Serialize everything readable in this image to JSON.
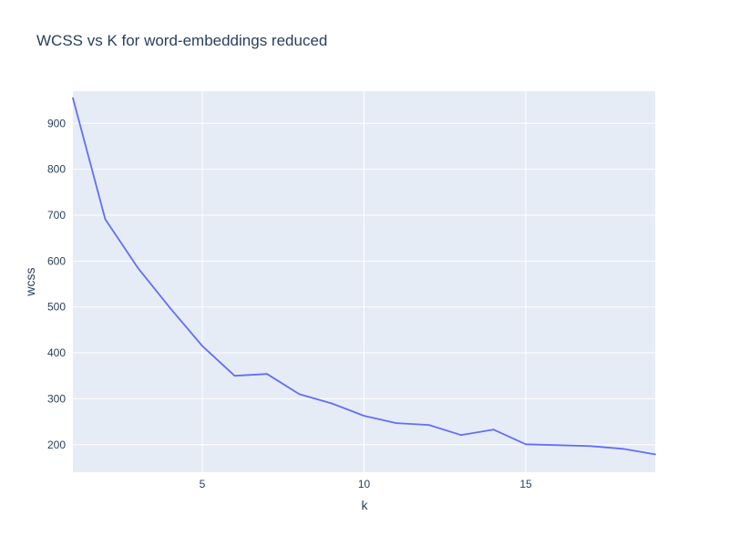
{
  "chart_data": {
    "type": "line",
    "title": "WCSS vs K for word-embeddings reduced",
    "xlabel": "k",
    "ylabel": "wcss",
    "xlim": [
      1,
      19
    ],
    "ylim": [
      140,
      970
    ],
    "grid": true,
    "x_ticks": [
      5,
      10,
      15
    ],
    "y_ticks": [
      200,
      300,
      400,
      500,
      600,
      700,
      800,
      900
    ],
    "colors": {
      "line": "#636efa",
      "plot_background": "#e5ecf6",
      "grid": "#ffffff",
      "text": "#2a3f5f"
    },
    "series": [
      {
        "x": [
          1,
          2,
          3,
          4,
          5,
          6,
          7,
          8,
          9,
          10,
          11,
          12,
          13,
          14,
          15,
          16,
          17,
          18,
          19
        ],
        "values": [
          955,
          691,
          586,
          498,
          415,
          350,
          354,
          310,
          290,
          263,
          247,
          243,
          221,
          233,
          201,
          199,
          197,
          191,
          179
        ]
      }
    ]
  }
}
